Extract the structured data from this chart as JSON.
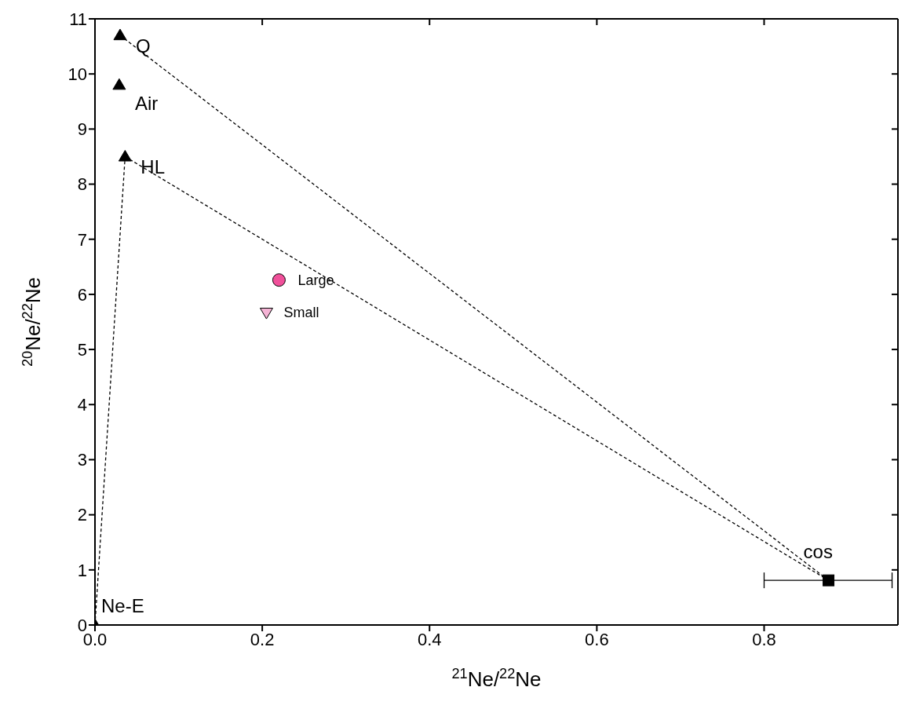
{
  "chart_data": {
    "type": "scatter",
    "xlabel": "$^{21}$Ne/$^{22}$Ne",
    "ylabel": "$^{20}$Ne/$^{22}$Ne",
    "xlim": [
      0,
      0.96
    ],
    "xticks": [
      {
        "value": 0,
        "label": "0.0"
      },
      {
        "value": 0.2,
        "label": "0.2"
      },
      {
        "value": 0.4,
        "label": "0.4"
      },
      {
        "value": 0.6,
        "label": "0.6"
      },
      {
        "value": 0.8,
        "label": "0.8"
      }
    ],
    "ylim": [
      0,
      11
    ],
    "yticks": [
      0,
      1,
      2,
      3,
      4,
      5,
      6,
      7,
      8,
      9,
      10,
      11
    ],
    "series": [
      {
        "type": "line",
        "color": "#000000",
        "line_style": "dashed",
        "marker": "none",
        "x": [
          0.036,
          0.877
        ],
        "values": [
          8.5,
          0.81
        ]
      },
      {
        "type": "line",
        "color": "#000000",
        "line_style": "dashed",
        "marker": "none",
        "x": [
          0.03,
          0.877
        ],
        "values": [
          10.7,
          0.81
        ]
      },
      {
        "type": "line",
        "color": "#000000",
        "line_style": "dashed",
        "marker": "none",
        "x": [
          0,
          0.036
        ],
        "values": [
          0,
          8.5
        ]
      },
      {
        "name": "Q",
        "color": "#000000",
        "marker": "triangle",
        "x": [
          0.03
        ],
        "values": [
          10.7
        ]
      },
      {
        "name": "Air",
        "color": "#000000",
        "marker": "triangle",
        "x": [
          0.029
        ],
        "values": [
          9.8
        ]
      },
      {
        "name": "HL",
        "color": "#000000",
        "marker": "triangle",
        "x": [
          0.036
        ],
        "values": [
          8.5
        ]
      },
      {
        "name": "Ne-E",
        "color": "#000000",
        "marker": "triangle",
        "x": [
          0
        ],
        "values": [
          0
        ]
      },
      {
        "name": "Large",
        "color": "#f0509a",
        "marker": "circle",
        "x": [
          0.22
        ],
        "values": [
          6.26
        ]
      },
      {
        "name": "Small",
        "color": "#f5b3d5",
        "marker": "triangle-down",
        "x": [
          0.205
        ],
        "values": [
          5.67
        ]
      },
      {
        "name": "cos",
        "color": "#000000",
        "marker": "square",
        "x": [
          0.877
        ],
        "values": [
          0.81
        ],
        "xerrors": [
          [
            0.8,
            0.953
          ]
        ]
      }
    ]
  }
}
